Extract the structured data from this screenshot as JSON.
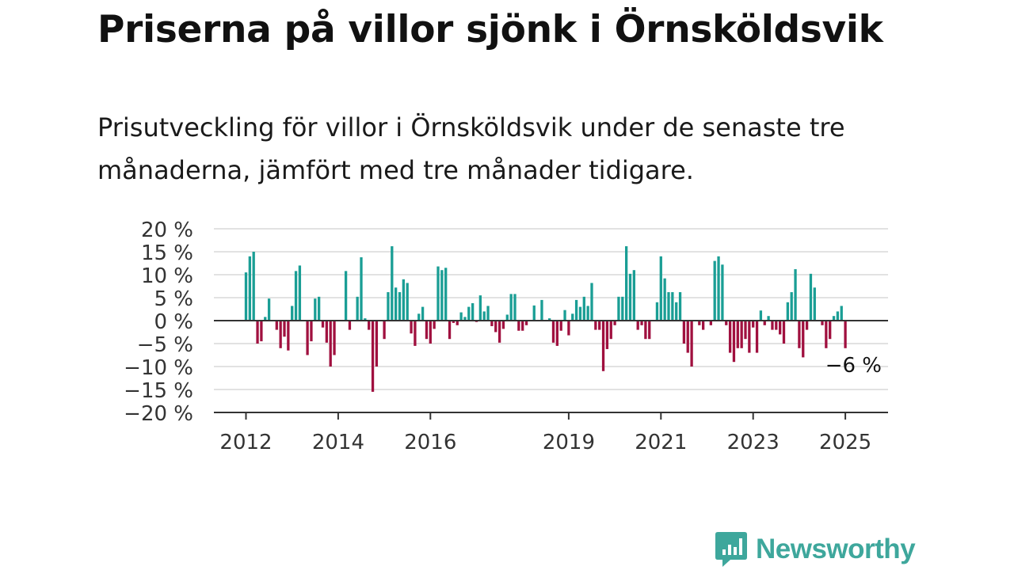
{
  "title": "Priserna på villor sjönk i Örnsköldsvik",
  "subtitle": "Prisutveckling för villor i Örnsköldsvik under de senaste tre månaderna, jämfört med tre månader tidigare.",
  "brand": {
    "name": "Newsworthy",
    "color": "#3ea79c"
  },
  "colors": {
    "positive": "#1a9e95",
    "negative": "#a0103f",
    "grid": "#d9d9d9",
    "axis": "#333333"
  },
  "chart_data": {
    "type": "bar",
    "y_ticks": [
      "20 %",
      "15 %",
      "10 %",
      "5 %",
      "0 %",
      "−5 %",
      "−10 %",
      "−15 %",
      "−20 %"
    ],
    "ylim": [
      -20,
      20
    ],
    "x_ticks": [
      {
        "label": "2012",
        "index": 0
      },
      {
        "label": "2014",
        "index": 24
      },
      {
        "label": "2016",
        "index": 48
      },
      {
        "label": "2019",
        "index": 84
      },
      {
        "label": "2021",
        "index": 108
      },
      {
        "label": "2023",
        "index": 132
      },
      {
        "label": "2025",
        "index": 156
      }
    ],
    "annotation": {
      "text": "−6 %",
      "index": 157,
      "value": -6
    },
    "values": [
      10.5,
      14,
      15,
      -5,
      -4.5,
      0.8,
      4.8,
      0,
      -2,
      -6,
      -3.5,
      -6.5,
      3.2,
      10.8,
      12,
      0,
      -7.5,
      -4.5,
      4.8,
      5.2,
      -1.5,
      -4.8,
      -10,
      -7.5,
      0,
      0,
      10.8,
      -2,
      0,
      5.2,
      13.8,
      0.5,
      -2,
      -15.5,
      -10,
      0,
      -4,
      6.2,
      16.2,
      7.2,
      6.2,
      9,
      8.2,
      -2.8,
      -5.5,
      1.5,
      3,
      -4,
      -5,
      -1.8,
      11.8,
      11,
      11.5,
      -4,
      -0.5,
      -1,
      1.8,
      0.8,
      3,
      3.8,
      -0.3,
      5.5,
      2,
      3.2,
      -1.2,
      -2.5,
      -4.8,
      -1.8,
      1.3,
      5.8,
      5.8,
      -2.2,
      -2.2,
      -1,
      0,
      3.3,
      0,
      4.5,
      0,
      0.5,
      -4.8,
      -5.5,
      -2.2,
      2.3,
      -3.2,
      1.5,
      4.5,
      3,
      5.2,
      3.2,
      8.2,
      -2,
      -2,
      -11,
      -6.2,
      -4,
      -1,
      5.2,
      5.2,
      16.2,
      10.2,
      11,
      -2,
      -1,
      -4,
      -4,
      0,
      4,
      14,
      9.2,
      6.2,
      6.2,
      4,
      6.2,
      -5,
      -7,
      -10,
      0,
      -1,
      -2,
      0,
      -1,
      13,
      14,
      12.2,
      -1,
      -7,
      -9,
      -6,
      -6,
      -4,
      -7,
      -1.5,
      -7,
      2.2,
      -1,
      1,
      -2,
      -2,
      -3,
      -5,
      4,
      6.2,
      11.2,
      -6,
      -8,
      -2,
      10.2,
      7.2,
      0,
      -1,
      -6,
      -4,
      1,
      2,
      3.2,
      -6
    ]
  }
}
